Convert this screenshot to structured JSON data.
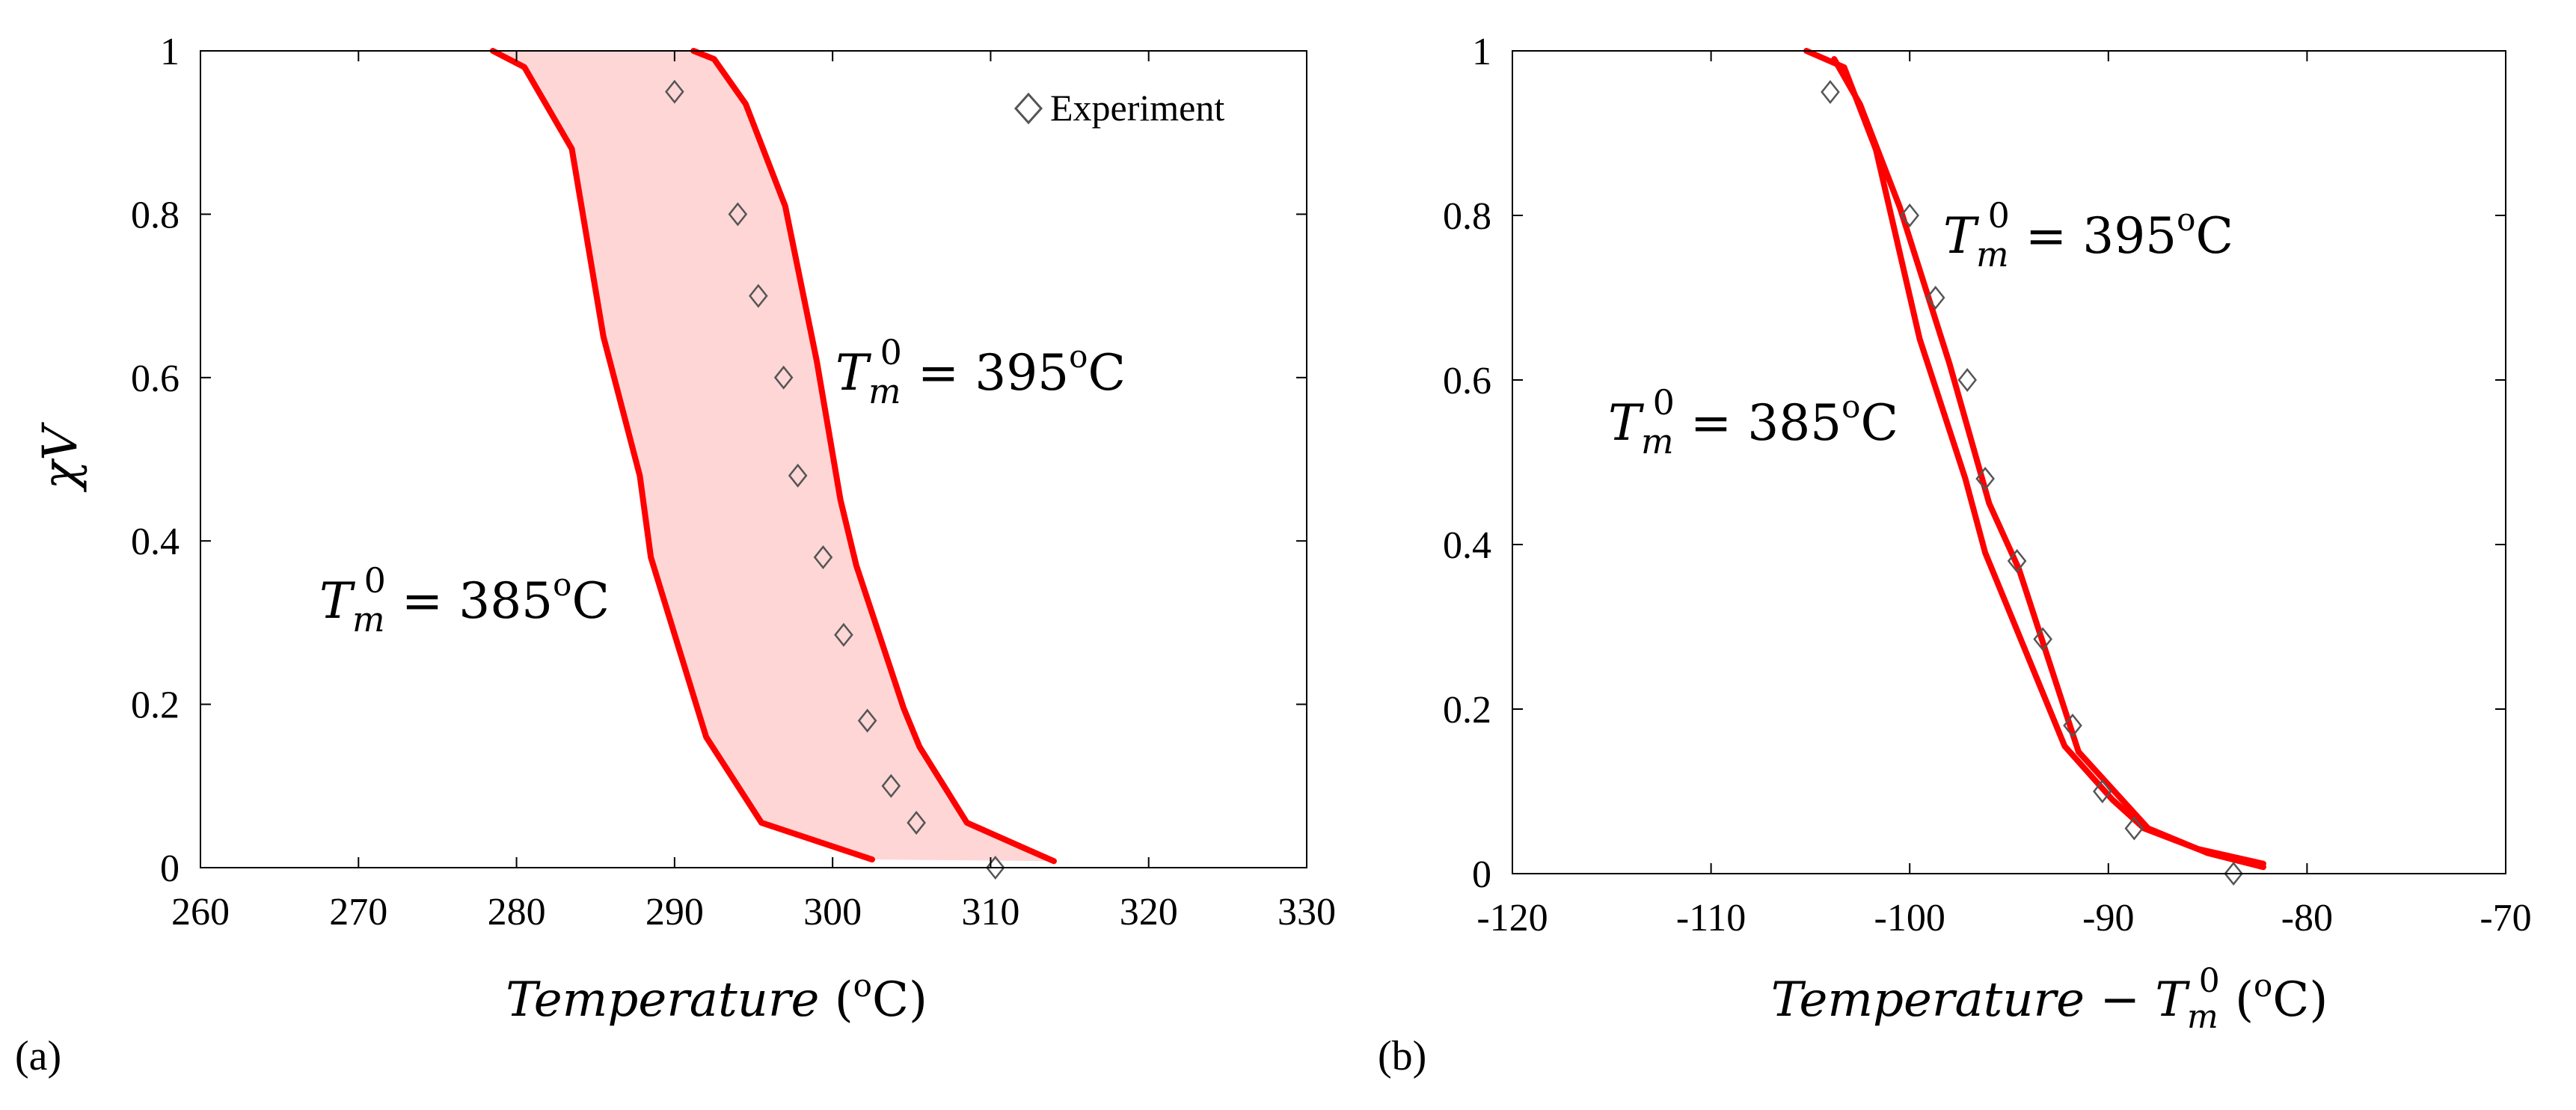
{
  "chart_data": [
    {
      "type": "line",
      "panel_label": "(a)",
      "xlabel": "Temperature (oC)",
      "xlabel_parts": {
        "var": "Temperature",
        "unit_open": " (",
        "unit_sup": "o",
        "unit_close": "C)"
      },
      "ylabel": "χV",
      "xlim": [
        260,
        330
      ],
      "ylim": [
        0,
        1
      ],
      "xticks": [
        260,
        270,
        280,
        290,
        300,
        310,
        320,
        330
      ],
      "yticks": [
        0,
        0.2,
        0.4,
        0.6,
        0.8,
        1
      ],
      "ytick_labels": [
        "0",
        "0.2",
        "0.4",
        "0.6",
        "0.8",
        "1"
      ],
      "shaded_region_between_series": true,
      "legend": {
        "label": "Experiment",
        "placement": "top-right"
      },
      "series": [
        {
          "name": "T_m^0 = 385oC",
          "label_parts": {
            "T": "T",
            "sub": "m",
            "sup": "0",
            "eq": " = 385",
            "deg": "o",
            "unit": "C"
          },
          "color": "#ff0000",
          "x": [
            278.5,
            280.5,
            283.5,
            285.5,
            287.8,
            288.5,
            292,
            295.5,
            302.5
          ],
          "y": [
            1.0,
            0.98,
            0.88,
            0.65,
            0.48,
            0.38,
            0.16,
            0.055,
            0.01
          ]
        },
        {
          "name": "T_m^0 = 395oC",
          "label_parts": {
            "T": "T",
            "sub": "m",
            "sup": "0",
            "eq": " = 395",
            "deg": "o",
            "unit": "C"
          },
          "color": "#ff0000",
          "x": [
            291.2,
            292.5,
            294.5,
            297,
            299,
            300.5,
            301.5,
            304.5,
            305.5,
            308.5,
            312,
            314
          ],
          "y": [
            1.0,
            0.99,
            0.935,
            0.81,
            0.62,
            0.45,
            0.37,
            0.195,
            0.148,
            0.055,
            0.025,
            0.008
          ]
        }
      ],
      "experiment": {
        "name": "Experiment",
        "x": [
          290,
          294,
          295.3,
          296.9,
          297.8,
          299.4,
          300.7,
          302.2,
          303.7,
          305.3,
          310.3
        ],
        "y": [
          0.95,
          0.8,
          0.7,
          0.6,
          0.48,
          0.38,
          0.285,
          0.18,
          0.1,
          0.055,
          0.0
        ]
      }
    },
    {
      "type": "line",
      "panel_label": "(b)",
      "xlabel": "Temperature − T_m^0 (oC)",
      "xlabel_parts": {
        "var": "Temperature − ",
        "T": "T",
        "sub": "m",
        "sup": "0",
        "unit_open": " (",
        "unit_sup": "o",
        "unit_close": "C)"
      },
      "xlim": [
        -120,
        -70
      ],
      "ylim": [
        0,
        1
      ],
      "xticks": [
        -120,
        -110,
        -100,
        -90,
        -80,
        -70
      ],
      "yticks": [
        0,
        0.2,
        0.4,
        0.6,
        0.8,
        1
      ],
      "ytick_labels": [
        "0",
        "0.2",
        "0.4",
        "0.6",
        "0.8",
        "1"
      ],
      "series": [
        {
          "name": "T_m^0 = 385oC",
          "label_parts": {
            "T": "T",
            "sub": "m",
            "sup": "0",
            "eq": " = 385",
            "deg": "o",
            "unit": "C"
          },
          "color": "#ff0000",
          "x": [
            -105.2,
            -103.3,
            -101.7,
            -99.5,
            -97.2,
            -96.2,
            -92.2,
            -89.8,
            -88.2,
            -85.5,
            -82.2
          ],
          "y": [
            1.0,
            0.98,
            0.88,
            0.65,
            0.48,
            0.39,
            0.155,
            0.09,
            0.055,
            0.03,
            0.012
          ]
        },
        {
          "name": "T_m^0 = 395oC",
          "label_parts": {
            "T": "T",
            "sub": "m",
            "sup": "0",
            "eq": " = 395",
            "deg": "o",
            "unit": "C"
          },
          "color": "#ff0000",
          "x": [
            -103.8,
            -102.5,
            -100.5,
            -98,
            -96,
            -94.5,
            -91.5,
            -88,
            -85,
            -82.2
          ],
          "y": [
            0.99,
            0.935,
            0.81,
            0.62,
            0.45,
            0.37,
            0.148,
            0.055,
            0.025,
            0.008
          ]
        }
      ],
      "experiment": {
        "name": "Experiment",
        "x": [
          -104,
          -100,
          -98.7,
          -97.1,
          -96.2,
          -94.6,
          -93.3,
          -91.8,
          -90.3,
          -88.7,
          -83.7
        ],
        "y": [
          0.95,
          0.8,
          0.7,
          0.6,
          0.48,
          0.38,
          0.285,
          0.18,
          0.1,
          0.055,
          0.0
        ]
      }
    }
  ]
}
